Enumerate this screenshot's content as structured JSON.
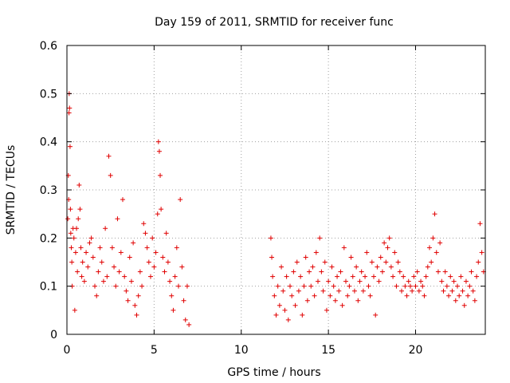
{
  "chart_data": {
    "type": "scatter",
    "title": "Day 159 of 2011, SRMTID for receiver func",
    "xlabel": "GPS time / hours",
    "ylabel": "SRMTID / TECUs",
    "xlim": [
      0,
      24
    ],
    "ylim": [
      0,
      0.6
    ],
    "xticks": [
      0,
      5,
      10,
      15,
      20
    ],
    "xtick_labels": [
      "0",
      "5",
      "10",
      "15",
      "20"
    ],
    "yticks": [
      0,
      0.1,
      0.2,
      0.3,
      0.4,
      0.5,
      0.6
    ],
    "ytick_labels": [
      "0",
      "0.1",
      "0.2",
      "0.3",
      "0.4",
      "0.5",
      "0.6"
    ],
    "grid": true,
    "marker": "plus",
    "color": "#e00000",
    "series": [
      {
        "name": "SRMTID",
        "points": [
          [
            0.05,
            0.24
          ],
          [
            0.08,
            0.33
          ],
          [
            0.1,
            0.28
          ],
          [
            0.12,
            0.46
          ],
          [
            0.13,
            0.5
          ],
          [
            0.15,
            0.47
          ],
          [
            0.18,
            0.39
          ],
          [
            0.2,
            0.26
          ],
          [
            0.22,
            0.21
          ],
          [
            0.25,
            0.18
          ],
          [
            0.28,
            0.15
          ],
          [
            0.3,
            0.1
          ],
          [
            0.35,
            0.22
          ],
          [
            0.4,
            0.2
          ],
          [
            0.45,
            0.05
          ],
          [
            0.5,
            0.17
          ],
          [
            0.55,
            0.22
          ],
          [
            0.6,
            0.13
          ],
          [
            0.65,
            0.24
          ],
          [
            0.7,
            0.31
          ],
          [
            0.75,
            0.26
          ],
          [
            0.8,
            0.18
          ],
          [
            0.85,
            0.12
          ],
          [
            0.9,
            0.15
          ],
          [
            1.0,
            0.11
          ],
          [
            1.1,
            0.17
          ],
          [
            1.2,
            0.14
          ],
          [
            1.3,
            0.19
          ],
          [
            1.4,
            0.2
          ],
          [
            1.5,
            0.16
          ],
          [
            1.6,
            0.1
          ],
          [
            1.7,
            0.08
          ],
          [
            1.8,
            0.13
          ],
          [
            1.9,
            0.18
          ],
          [
            2.0,
            0.15
          ],
          [
            2.1,
            0.11
          ],
          [
            2.2,
            0.22
          ],
          [
            2.3,
            0.12
          ],
          [
            2.4,
            0.37
          ],
          [
            2.5,
            0.33
          ],
          [
            2.6,
            0.18
          ],
          [
            2.7,
            0.14
          ],
          [
            2.8,
            0.1
          ],
          [
            2.9,
            0.24
          ],
          [
            3.0,
            0.13
          ],
          [
            3.1,
            0.17
          ],
          [
            3.2,
            0.28
          ],
          [
            3.3,
            0.12
          ],
          [
            3.4,
            0.09
          ],
          [
            3.5,
            0.07
          ],
          [
            3.6,
            0.16
          ],
          [
            3.7,
            0.11
          ],
          [
            3.8,
            0.19
          ],
          [
            3.9,
            0.06
          ],
          [
            4.0,
            0.04
          ],
          [
            4.1,
            0.08
          ],
          [
            4.2,
            0.13
          ],
          [
            4.3,
            0.1
          ],
          [
            4.4,
            0.23
          ],
          [
            4.5,
            0.21
          ],
          [
            4.6,
            0.18
          ],
          [
            4.7,
            0.15
          ],
          [
            4.8,
            0.12
          ],
          [
            4.9,
            0.2
          ],
          [
            5.0,
            0.14
          ],
          [
            5.1,
            0.17
          ],
          [
            5.2,
            0.25
          ],
          [
            5.25,
            0.4
          ],
          [
            5.3,
            0.38
          ],
          [
            5.35,
            0.33
          ],
          [
            5.4,
            0.26
          ],
          [
            5.5,
            0.16
          ],
          [
            5.6,
            0.13
          ],
          [
            5.7,
            0.21
          ],
          [
            5.8,
            0.15
          ],
          [
            5.9,
            0.11
          ],
          [
            6.0,
            0.08
          ],
          [
            6.1,
            0.05
          ],
          [
            6.2,
            0.12
          ],
          [
            6.3,
            0.18
          ],
          [
            6.4,
            0.1
          ],
          [
            6.5,
            0.28
          ],
          [
            6.6,
            0.14
          ],
          [
            6.7,
            0.07
          ],
          [
            6.8,
            0.03
          ],
          [
            6.9,
            0.1
          ],
          [
            7.0,
            0.02
          ],
          [
            11.7,
            0.2
          ],
          [
            11.75,
            0.16
          ],
          [
            11.8,
            0.12
          ],
          [
            11.9,
            0.08
          ],
          [
            12.0,
            0.04
          ],
          [
            12.1,
            0.1
          ],
          [
            12.2,
            0.06
          ],
          [
            12.3,
            0.14
          ],
          [
            12.4,
            0.09
          ],
          [
            12.5,
            0.05
          ],
          [
            12.6,
            0.12
          ],
          [
            12.7,
            0.03
          ],
          [
            12.8,
            0.1
          ],
          [
            12.9,
            0.08
          ],
          [
            13.0,
            0.13
          ],
          [
            13.1,
            0.06
          ],
          [
            13.2,
            0.15
          ],
          [
            13.3,
            0.09
          ],
          [
            13.4,
            0.12
          ],
          [
            13.5,
            0.04
          ],
          [
            13.6,
            0.1
          ],
          [
            13.7,
            0.16
          ],
          [
            13.8,
            0.07
          ],
          [
            13.9,
            0.13
          ],
          [
            14.0,
            0.1
          ],
          [
            14.1,
            0.14
          ],
          [
            14.2,
            0.08
          ],
          [
            14.3,
            0.17
          ],
          [
            14.4,
            0.11
          ],
          [
            14.5,
            0.2
          ],
          [
            14.6,
            0.13
          ],
          [
            14.7,
            0.09
          ],
          [
            14.8,
            0.15
          ],
          [
            14.9,
            0.05
          ],
          [
            15.0,
            0.11
          ],
          [
            15.1,
            0.08
          ],
          [
            15.2,
            0.14
          ],
          [
            15.3,
            0.1
          ],
          [
            15.4,
            0.07
          ],
          [
            15.5,
            0.12
          ],
          [
            15.6,
            0.09
          ],
          [
            15.7,
            0.13
          ],
          [
            15.8,
            0.06
          ],
          [
            15.9,
            0.18
          ],
          [
            16.0,
            0.11
          ],
          [
            16.1,
            0.08
          ],
          [
            16.2,
            0.1
          ],
          [
            16.3,
            0.16
          ],
          [
            16.4,
            0.12
          ],
          [
            16.5,
            0.09
          ],
          [
            16.6,
            0.14
          ],
          [
            16.7,
            0.07
          ],
          [
            16.8,
            0.11
          ],
          [
            16.9,
            0.13
          ],
          [
            17.0,
            0.09
          ],
          [
            17.1,
            0.12
          ],
          [
            17.2,
            0.17
          ],
          [
            17.3,
            0.1
          ],
          [
            17.4,
            0.08
          ],
          [
            17.5,
            0.15
          ],
          [
            17.6,
            0.12
          ],
          [
            17.7,
            0.04
          ],
          [
            17.8,
            0.14
          ],
          [
            17.9,
            0.11
          ],
          [
            18.0,
            0.16
          ],
          [
            18.1,
            0.13
          ],
          [
            18.2,
            0.19
          ],
          [
            18.3,
            0.15
          ],
          [
            18.4,
            0.18
          ],
          [
            18.5,
            0.2
          ],
          [
            18.6,
            0.14
          ],
          [
            18.7,
            0.12
          ],
          [
            18.8,
            0.17
          ],
          [
            18.9,
            0.1
          ],
          [
            19.0,
            0.15
          ],
          [
            19.1,
            0.13
          ],
          [
            19.2,
            0.09
          ],
          [
            19.3,
            0.12
          ],
          [
            19.4,
            0.1
          ],
          [
            19.5,
            0.08
          ],
          [
            19.6,
            0.11
          ],
          [
            19.7,
            0.1
          ],
          [
            19.8,
            0.09
          ],
          [
            19.9,
            0.12
          ],
          [
            20.0,
            0.1
          ],
          [
            20.1,
            0.13
          ],
          [
            20.2,
            0.09
          ],
          [
            20.3,
            0.11
          ],
          [
            20.4,
            0.1
          ],
          [
            20.5,
            0.08
          ],
          [
            20.6,
            0.12
          ],
          [
            20.7,
            0.14
          ],
          [
            20.8,
            0.18
          ],
          [
            20.9,
            0.15
          ],
          [
            21.0,
            0.2
          ],
          [
            21.1,
            0.25
          ],
          [
            21.2,
            0.17
          ],
          [
            21.3,
            0.13
          ],
          [
            21.4,
            0.19
          ],
          [
            21.5,
            0.11
          ],
          [
            21.6,
            0.09
          ],
          [
            21.7,
            0.13
          ],
          [
            21.8,
            0.1
          ],
          [
            21.9,
            0.08
          ],
          [
            22.0,
            0.12
          ],
          [
            22.1,
            0.09
          ],
          [
            22.2,
            0.11
          ],
          [
            22.3,
            0.07
          ],
          [
            22.4,
            0.1
          ],
          [
            22.5,
            0.08
          ],
          [
            22.6,
            0.12
          ],
          [
            22.7,
            0.09
          ],
          [
            22.8,
            0.06
          ],
          [
            22.9,
            0.11
          ],
          [
            23.0,
            0.08
          ],
          [
            23.1,
            0.1
          ],
          [
            23.2,
            0.13
          ],
          [
            23.3,
            0.09
          ],
          [
            23.4,
            0.07
          ],
          [
            23.5,
            0.12
          ],
          [
            23.6,
            0.15
          ],
          [
            23.7,
            0.23
          ],
          [
            23.8,
            0.17
          ],
          [
            23.9,
            0.13
          ]
        ]
      }
    ]
  }
}
